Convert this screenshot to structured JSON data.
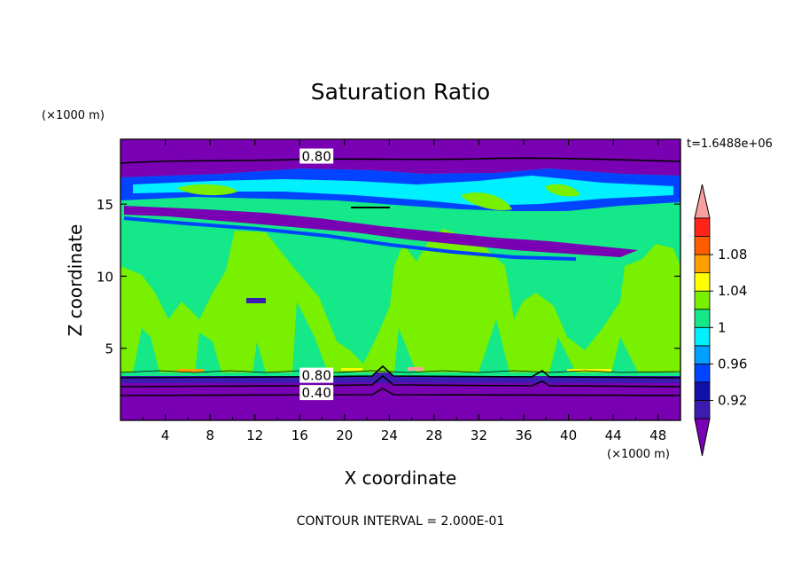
{
  "chart_data": {
    "type": "heatmap",
    "title": "Saturation Ratio",
    "xlabel": "X coordinate",
    "ylabel": "Z coordinate",
    "x_unit": "(×1000 m)",
    "y_unit": "(×1000 m)",
    "xlim": [
      0,
      50
    ],
    "ylim": [
      0,
      19.5
    ],
    "x_ticks": [
      4,
      8,
      12,
      16,
      20,
      24,
      28,
      32,
      36,
      40,
      44,
      48
    ],
    "y_ticks": [
      5,
      10,
      15
    ],
    "time_label": "t=1.6488e+06",
    "footer": "CONTOUR INTERVAL = 2.000E-01",
    "colorbar": {
      "labels": [
        "0.92",
        "0.96",
        "1",
        "1.04",
        "1.08"
      ],
      "levels": [
        0.9,
        0.92,
        0.94,
        0.96,
        0.98,
        1.0,
        1.02,
        1.04,
        1.06,
        1.08,
        1.1
      ],
      "colors": [
        "#7a00b4",
        "#3c1cb0",
        "#1010a8",
        "#0044ff",
        "#00a0ff",
        "#00f0ff",
        "#14e888",
        "#78f000",
        "#ffff00",
        "#ffa000",
        "#ff5c00",
        "#ff2418",
        "#f8a0a0"
      ],
      "extend": "both"
    },
    "contour_labels": [
      "0.80",
      "0.80",
      "0.40"
    ],
    "contour_values": [
      0.8,
      0.8,
      0.4
    ]
  }
}
